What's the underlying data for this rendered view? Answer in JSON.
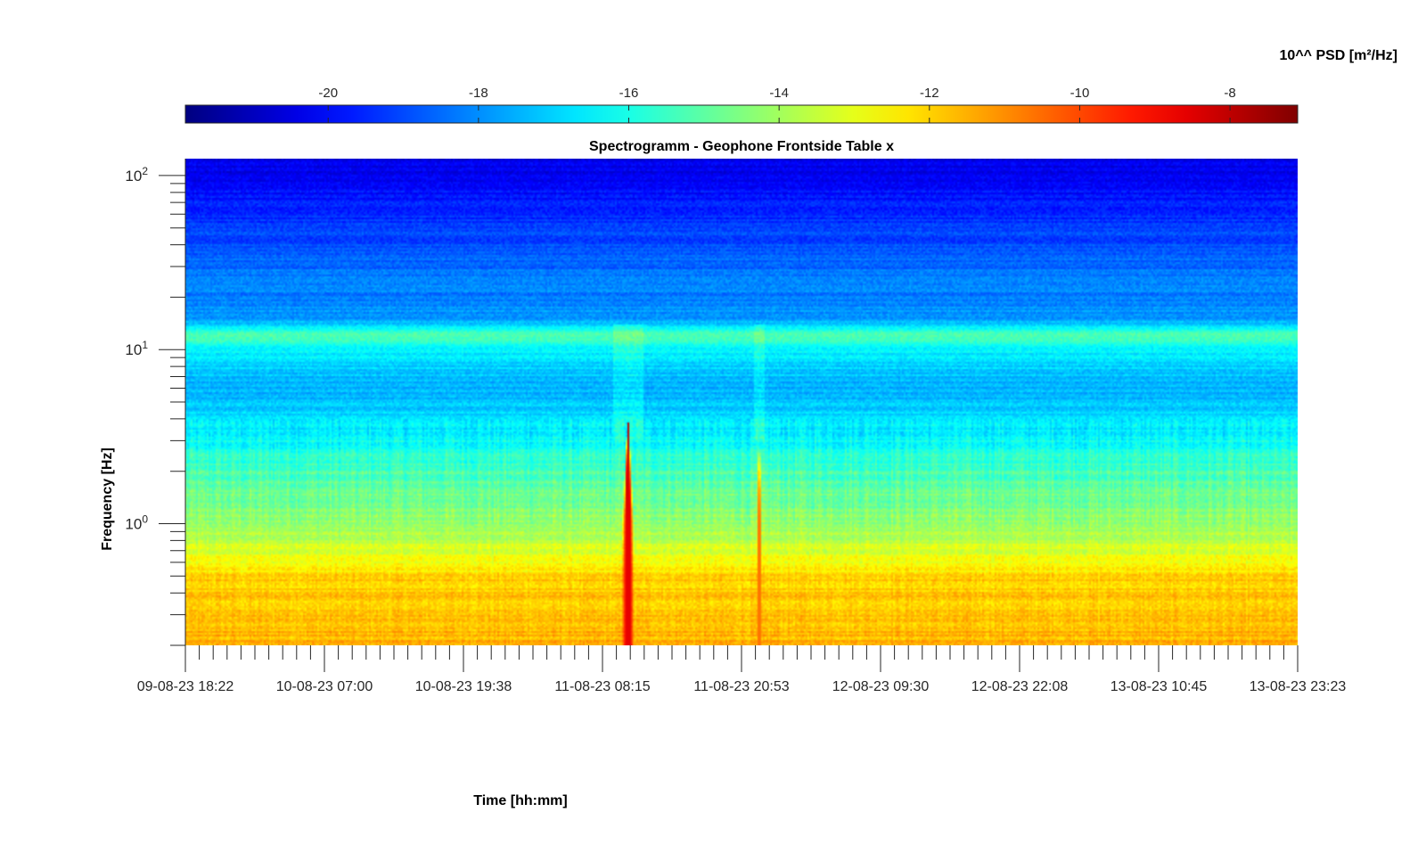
{
  "chart_data": {
    "type": "heatmap",
    "title": "Spectrogramm - Geophone Frontside Table x",
    "xlabel": "Time [hh:mm]",
    "ylabel": "Frequency [Hz]",
    "x_tick_labels": [
      "09-08-23 18:22",
      "10-08-23 07:00",
      "10-08-23 19:38",
      "11-08-23 08:15",
      "11-08-23 20:53",
      "12-08-23 09:30",
      "12-08-23 22:08",
      "13-08-23 10:45",
      "13-08-23 23:23"
    ],
    "y_scale": "log",
    "ylim": [
      0.2,
      125
    ],
    "y_ticks": [
      {
        "base": "10",
        "exp": "0",
        "value": 1
      },
      {
        "base": "10",
        "exp": "1",
        "value": 10
      },
      {
        "base": "10",
        "exp": "2",
        "value": 100
      }
    ],
    "colorbar": {
      "label": "10^^ PSD [m²/Hz]",
      "placement": "top",
      "colormap": "jet",
      "range": [
        -21.9,
        -7.1
      ],
      "ticks": [
        -20,
        -18,
        -16,
        -14,
        -12,
        -10,
        -8
      ],
      "tick_labels": [
        "-20",
        "-18",
        "-16",
        "-14",
        "-12",
        "-10",
        "-8"
      ]
    },
    "frequency_profile": [
      {
        "freq_hz": 0.2,
        "log_psd": -11.5
      },
      {
        "freq_hz": 0.5,
        "log_psd": -12.0
      },
      {
        "freq_hz": 0.6,
        "log_psd": -12.8
      },
      {
        "freq_hz": 1.0,
        "log_psd": -14.2
      },
      {
        "freq_hz": 2.0,
        "log_psd": -15.3
      },
      {
        "freq_hz": 4.0,
        "log_psd": -16.8
      },
      {
        "freq_hz": 6.0,
        "log_psd": -17.5
      },
      {
        "freq_hz": 10.0,
        "log_psd": -16.5
      },
      {
        "freq_hz": 12.0,
        "log_psd": -15.0
      },
      {
        "freq_hz": 15.0,
        "log_psd": -17.8
      },
      {
        "freq_hz": 30.0,
        "log_psd": -18.5
      },
      {
        "freq_hz": 60.0,
        "log_psd": -19.5
      },
      {
        "freq_hz": 125.0,
        "log_psd": -20.5
      }
    ],
    "events": [
      {
        "time_fraction": 0.398,
        "width_fraction": 0.011,
        "max_freq_hz": 3.2,
        "peak_log_psd": -8.6
      },
      {
        "time_fraction": 0.516,
        "width_fraction": 0.004,
        "max_freq_hz": 3.5,
        "peak_log_psd": -10.6
      }
    ],
    "grid": false
  }
}
